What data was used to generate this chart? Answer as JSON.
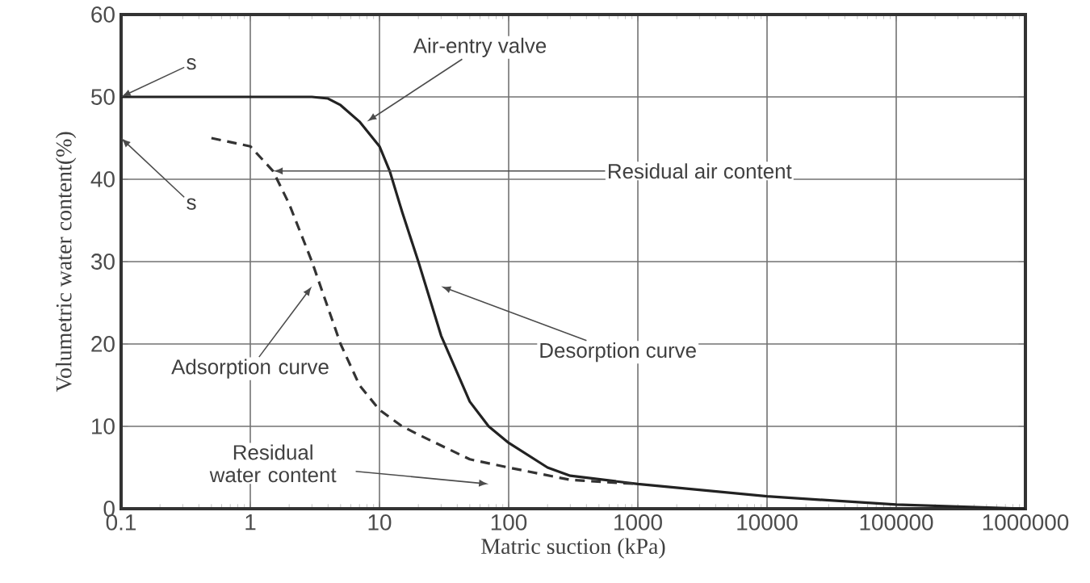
{
  "chart_data": {
    "type": "line",
    "xlabel": "Matric suction (kPa)",
    "ylabel": "Volumetric water content(%)",
    "x": [
      0.1,
      1,
      2,
      3,
      4,
      5,
      7,
      10,
      12,
      15,
      20,
      30,
      50,
      70,
      100,
      200,
      300,
      1000,
      10000,
      100000,
      1000000
    ],
    "series": [
      {
        "color": "#222222",
        "line_style": "solid",
        "values": [
          50,
          50,
          50,
          50,
          49.8,
          49,
          47,
          44,
          41,
          36,
          30,
          21,
          13,
          10,
          8,
          5,
          4,
          3,
          1.5,
          0.5,
          0
        ]
      },
      {
        "color": "#333333",
        "line_style": "dashed",
        "x": [
          0.5,
          1,
          1.5,
          2,
          3,
          5,
          7,
          10,
          15,
          20,
          50,
          100,
          300,
          1000
        ],
        "values": [
          45,
          44,
          41,
          37,
          30,
          20,
          15,
          12,
          10,
          9,
          6,
          5,
          3.5,
          3
        ]
      }
    ],
    "log": "x",
    "xlim": [
      0.1,
      1000000
    ],
    "ylim": [
      0,
      60
    ],
    "xticks": [
      0.1,
      1,
      10,
      100,
      1000,
      10000,
      100000,
      1000000
    ],
    "yticks": [
      0,
      10,
      20,
      30,
      40,
      50,
      60
    ],
    "grid": true,
    "annotations": [
      {
        "text": "s",
        "x": 0.1,
        "y": 50
      },
      "s",
      "Air-entry valve",
      {
        "text": "Residual air content",
        "x": 1.5,
        "y": 41
      },
      "Adsorption curve",
      "Desorption curve",
      "Residual water content"
    ]
  }
}
